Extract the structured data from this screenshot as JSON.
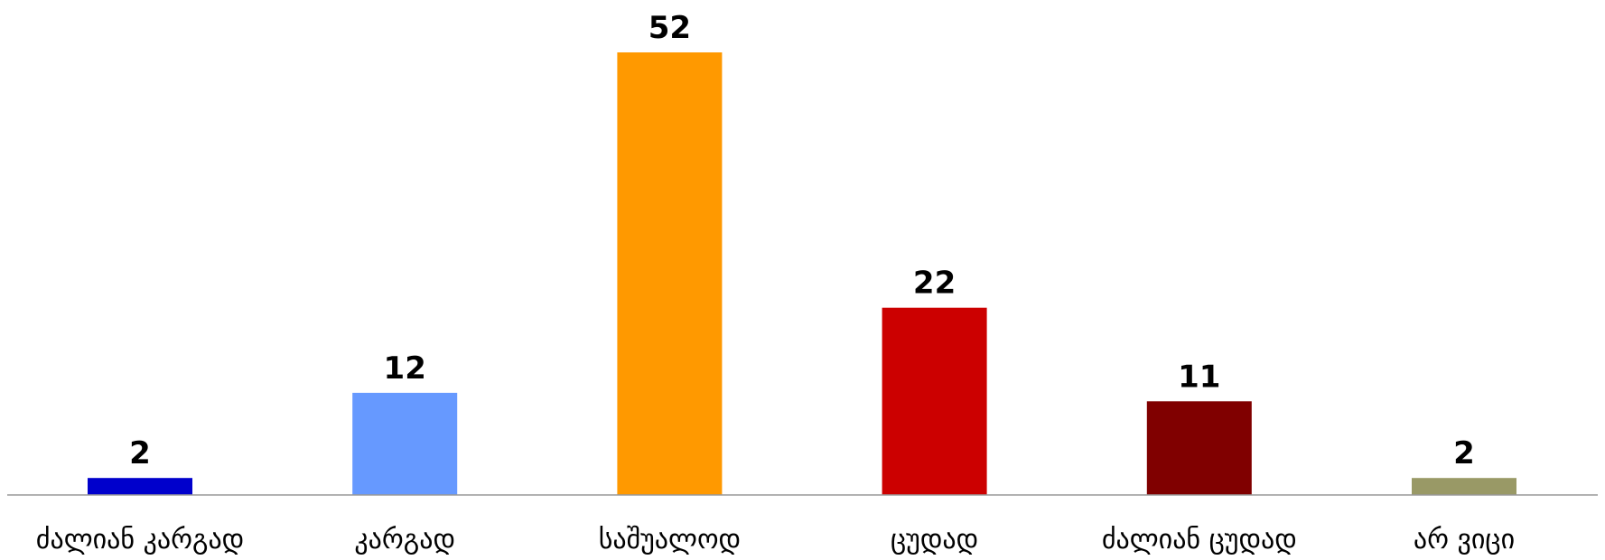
{
  "chart_data": {
    "type": "bar",
    "categories": [
      "ძალიან კარგად",
      "კარგად",
      "საშუალოდ",
      "ცუდად",
      "ძალიან ცუდად",
      "არ ვიცი"
    ],
    "values": [
      2,
      12,
      52,
      22,
      11,
      2
    ],
    "colors": [
      "#0000cc",
      "#6699ff",
      "#ff9900",
      "#cc0000",
      "#800000",
      "#999966"
    ],
    "axis_color": "#999999",
    "ylim": [
      0,
      52
    ],
    "grid": false,
    "legend": "none",
    "data_labels": true
  }
}
